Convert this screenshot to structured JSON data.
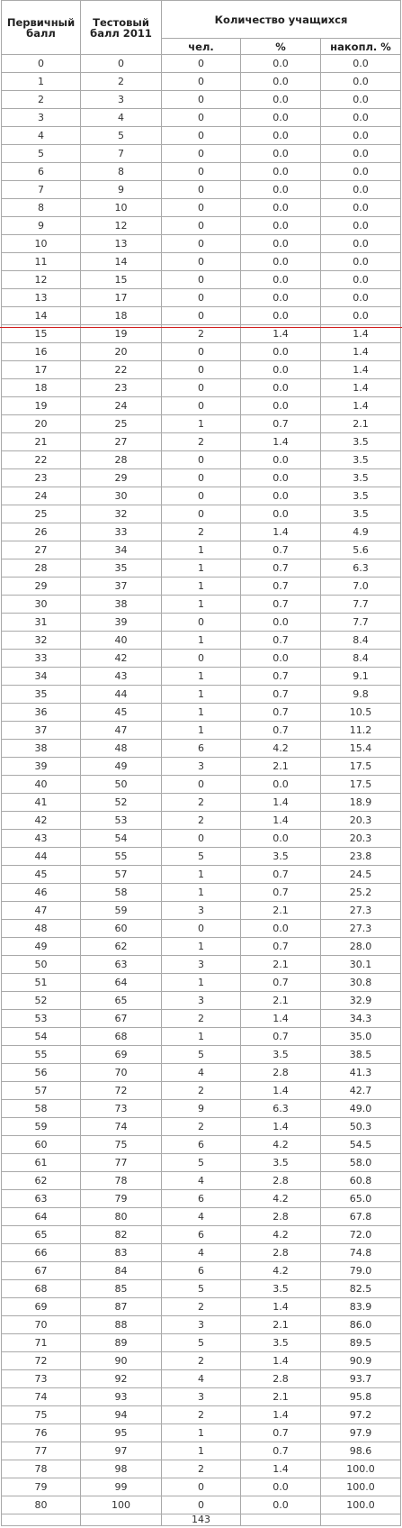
{
  "header": {
    "primary_label": "Первичный балл",
    "test_label": "Тестовый балл 2011",
    "students_label": "Количество учащихся",
    "count_label": "чел.",
    "pct_label": "%",
    "cum_label": "накопл. %"
  },
  "rows": [
    [
      "0",
      "0",
      "0",
      "0.0",
      "0.0"
    ],
    [
      "1",
      "2",
      "0",
      "0.0",
      "0.0"
    ],
    [
      "2",
      "3",
      "0",
      "0.0",
      "0.0"
    ],
    [
      "3",
      "4",
      "0",
      "0.0",
      "0.0"
    ],
    [
      "4",
      "5",
      "0",
      "0.0",
      "0.0"
    ],
    [
      "5",
      "7",
      "0",
      "0.0",
      "0.0"
    ],
    [
      "6",
      "8",
      "0",
      "0.0",
      "0.0"
    ],
    [
      "7",
      "9",
      "0",
      "0.0",
      "0.0"
    ],
    [
      "8",
      "10",
      "0",
      "0.0",
      "0.0"
    ],
    [
      "9",
      "12",
      "0",
      "0.0",
      "0.0"
    ],
    [
      "10",
      "13",
      "0",
      "0.0",
      "0.0"
    ],
    [
      "11",
      "14",
      "0",
      "0.0",
      "0.0"
    ],
    [
      "12",
      "15",
      "0",
      "0.0",
      "0.0"
    ],
    [
      "13",
      "17",
      "0",
      "0.0",
      "0.0"
    ],
    [
      "14",
      "18",
      "0",
      "0.0",
      "0.0"
    ],
    [
      "15",
      "19",
      "2",
      "1.4",
      "1.4"
    ],
    [
      "16",
      "20",
      "0",
      "0.0",
      "1.4"
    ],
    [
      "17",
      "22",
      "0",
      "0.0",
      "1.4"
    ],
    [
      "18",
      "23",
      "0",
      "0.0",
      "1.4"
    ],
    [
      "19",
      "24",
      "0",
      "0.0",
      "1.4"
    ],
    [
      "20",
      "25",
      "1",
      "0.7",
      "2.1"
    ],
    [
      "21",
      "27",
      "2",
      "1.4",
      "3.5"
    ],
    [
      "22",
      "28",
      "0",
      "0.0",
      "3.5"
    ],
    [
      "23",
      "29",
      "0",
      "0.0",
      "3.5"
    ],
    [
      "24",
      "30",
      "0",
      "0.0",
      "3.5"
    ],
    [
      "25",
      "32",
      "0",
      "0.0",
      "3.5"
    ],
    [
      "26",
      "33",
      "2",
      "1.4",
      "4.9"
    ],
    [
      "27",
      "34",
      "1",
      "0.7",
      "5.6"
    ],
    [
      "28",
      "35",
      "1",
      "0.7",
      "6.3"
    ],
    [
      "29",
      "37",
      "1",
      "0.7",
      "7.0"
    ],
    [
      "30",
      "38",
      "1",
      "0.7",
      "7.7"
    ],
    [
      "31",
      "39",
      "0",
      "0.0",
      "7.7"
    ],
    [
      "32",
      "40",
      "1",
      "0.7",
      "8.4"
    ],
    [
      "33",
      "42",
      "0",
      "0.0",
      "8.4"
    ],
    [
      "34",
      "43",
      "1",
      "0.7",
      "9.1"
    ],
    [
      "35",
      "44",
      "1",
      "0.7",
      "9.8"
    ],
    [
      "36",
      "45",
      "1",
      "0.7",
      "10.5"
    ],
    [
      "37",
      "47",
      "1",
      "0.7",
      "11.2"
    ],
    [
      "38",
      "48",
      "6",
      "4.2",
      "15.4"
    ],
    [
      "39",
      "49",
      "3",
      "2.1",
      "17.5"
    ],
    [
      "40",
      "50",
      "0",
      "0.0",
      "17.5"
    ],
    [
      "41",
      "52",
      "2",
      "1.4",
      "18.9"
    ],
    [
      "42",
      "53",
      "2",
      "1.4",
      "20.3"
    ],
    [
      "43",
      "54",
      "0",
      "0.0",
      "20.3"
    ],
    [
      "44",
      "55",
      "5",
      "3.5",
      "23.8"
    ],
    [
      "45",
      "57",
      "1",
      "0.7",
      "24.5"
    ],
    [
      "46",
      "58",
      "1",
      "0.7",
      "25.2"
    ],
    [
      "47",
      "59",
      "3",
      "2.1",
      "27.3"
    ],
    [
      "48",
      "60",
      "0",
      "0.0",
      "27.3"
    ],
    [
      "49",
      "62",
      "1",
      "0.7",
      "28.0"
    ],
    [
      "50",
      "63",
      "3",
      "2.1",
      "30.1"
    ],
    [
      "51",
      "64",
      "1",
      "0.7",
      "30.8"
    ],
    [
      "52",
      "65",
      "3",
      "2.1",
      "32.9"
    ],
    [
      "53",
      "67",
      "2",
      "1.4",
      "34.3"
    ],
    [
      "54",
      "68",
      "1",
      "0.7",
      "35.0"
    ],
    [
      "55",
      "69",
      "5",
      "3.5",
      "38.5"
    ],
    [
      "56",
      "70",
      "4",
      "2.8",
      "41.3"
    ],
    [
      "57",
      "72",
      "2",
      "1.4",
      "42.7"
    ],
    [
      "58",
      "73",
      "9",
      "6.3",
      "49.0"
    ],
    [
      "59",
      "74",
      "2",
      "1.4",
      "50.3"
    ],
    [
      "60",
      "75",
      "6",
      "4.2",
      "54.5"
    ],
    [
      "61",
      "77",
      "5",
      "3.5",
      "58.0"
    ],
    [
      "62",
      "78",
      "4",
      "2.8",
      "60.8"
    ],
    [
      "63",
      "79",
      "6",
      "4.2",
      "65.0"
    ],
    [
      "64",
      "80",
      "4",
      "2.8",
      "67.8"
    ],
    [
      "65",
      "82",
      "6",
      "4.2",
      "72.0"
    ],
    [
      "66",
      "83",
      "4",
      "2.8",
      "74.8"
    ],
    [
      "67",
      "84",
      "6",
      "4.2",
      "79.0"
    ],
    [
      "68",
      "85",
      "5",
      "3.5",
      "82.5"
    ],
    [
      "69",
      "87",
      "2",
      "1.4",
      "83.9"
    ],
    [
      "70",
      "88",
      "3",
      "2.1",
      "86.0"
    ],
    [
      "71",
      "89",
      "5",
      "3.5",
      "89.5"
    ],
    [
      "72",
      "90",
      "2",
      "1.4",
      "90.9"
    ],
    [
      "73",
      "92",
      "4",
      "2.8",
      "93.7"
    ],
    [
      "74",
      "93",
      "3",
      "2.1",
      "95.8"
    ],
    [
      "75",
      "94",
      "2",
      "1.4",
      "97.2"
    ],
    [
      "76",
      "95",
      "1",
      "0.7",
      "97.9"
    ],
    [
      "77",
      "97",
      "1",
      "0.7",
      "98.6"
    ],
    [
      "78",
      "98",
      "2",
      "1.4",
      "100.0"
    ],
    [
      "79",
      "99",
      "0",
      "0.0",
      "100.0"
    ],
    [
      "80",
      "100",
      "0",
      "0.0",
      "100.0"
    ]
  ],
  "footer": {
    "primary": "",
    "test": "",
    "total_count": "143",
    "pct": "",
    "cum": ""
  },
  "colors": {
    "border": "#a9a9a9",
    "threshold_line": "#d22020"
  }
}
